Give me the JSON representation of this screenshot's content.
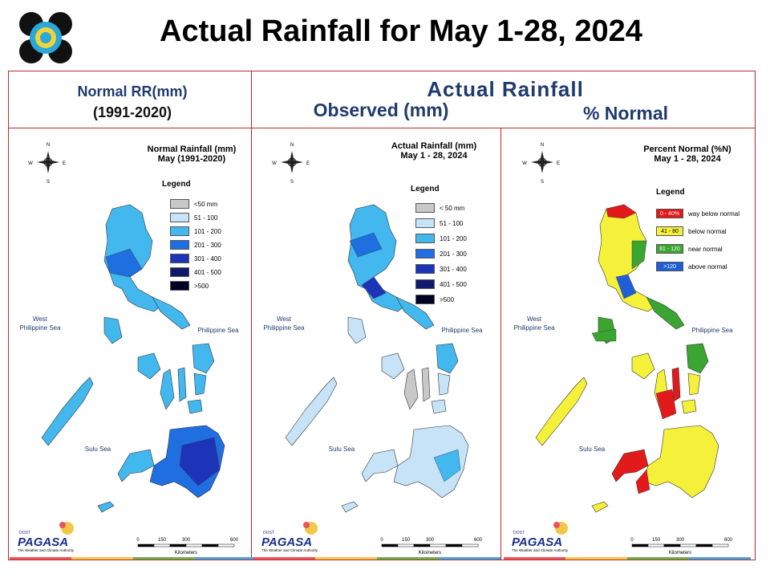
{
  "header": {
    "title": "Actual Rainfall for May 1-28, 2024"
  },
  "columns": {
    "left_line1": "Normal RR(mm)",
    "left_line2": "(1991-2020)",
    "actual_title": "Actual Rainfall",
    "observed_title": "Observed (mm)",
    "percent_title": "% Normal"
  },
  "maps": [
    {
      "title_line1": "Normal Rainfall (mm)",
      "title_line2": "May (1991-2020)",
      "legend_title": "Legend",
      "legend": [
        {
          "label": "<50 mm",
          "color": "#c8c8c8"
        },
        {
          "label": "51 - 100",
          "color": "#c6e3f7"
        },
        {
          "label": "101 - 200",
          "color": "#42b8ef"
        },
        {
          "label": "201 - 300",
          "color": "#1f6fe0"
        },
        {
          "label": "301 - 400",
          "color": "#1d34b8"
        },
        {
          "label": "401 - 500",
          "color": "#101a6b"
        },
        {
          "label": ">500",
          "color": "#000026"
        }
      ]
    },
    {
      "title_line1": "Actual Rainfall (mm)",
      "title_line2": "May 1 - 28, 2024",
      "legend_title": "Legend",
      "legend": [
        {
          "label": "< 50 mm",
          "color": "#c8c8c8"
        },
        {
          "label": "51 - 100",
          "color": "#c6e3f7"
        },
        {
          "label": "101 - 200",
          "color": "#42b8ef"
        },
        {
          "label": "201 - 300",
          "color": "#1f6fe0"
        },
        {
          "label": "301 - 400",
          "color": "#1d34b8"
        },
        {
          "label": "401 - 500",
          "color": "#101a6b"
        },
        {
          "label": ">500",
          "color": "#000026"
        }
      ]
    },
    {
      "title_line1": "Percent Normal (%N)",
      "title_line2": "May 1 - 28, 2024",
      "legend_title": "Legend",
      "legend": [
        {
          "range": "0 - 40%",
          "label": "way below normal",
          "color": "#e31a1c"
        },
        {
          "range": "41 - 80",
          "label": "below normal",
          "color": "#f5f03a"
        },
        {
          "range": "81 - 120",
          "label": "near normal",
          "color": "#3aa530"
        },
        {
          "range": ">120",
          "label": "above normal",
          "color": "#1f5fd6"
        }
      ]
    }
  ],
  "seas": {
    "west": "West\nPhilippine Sea",
    "west_line1": "West",
    "west_line2": "Philippine Sea",
    "east": "Philippine Sea",
    "sulu": "Sulu Sea"
  },
  "compass": {
    "n": "N",
    "s": "S",
    "e": "E",
    "w": "W"
  },
  "scale": {
    "ticks": [
      "0",
      "150",
      "300",
      "600"
    ],
    "unit": "Kilometers"
  },
  "branding": {
    "name": "PAGASA",
    "dost": "DOST",
    "tagline": "The Weather and Climate Authority"
  }
}
